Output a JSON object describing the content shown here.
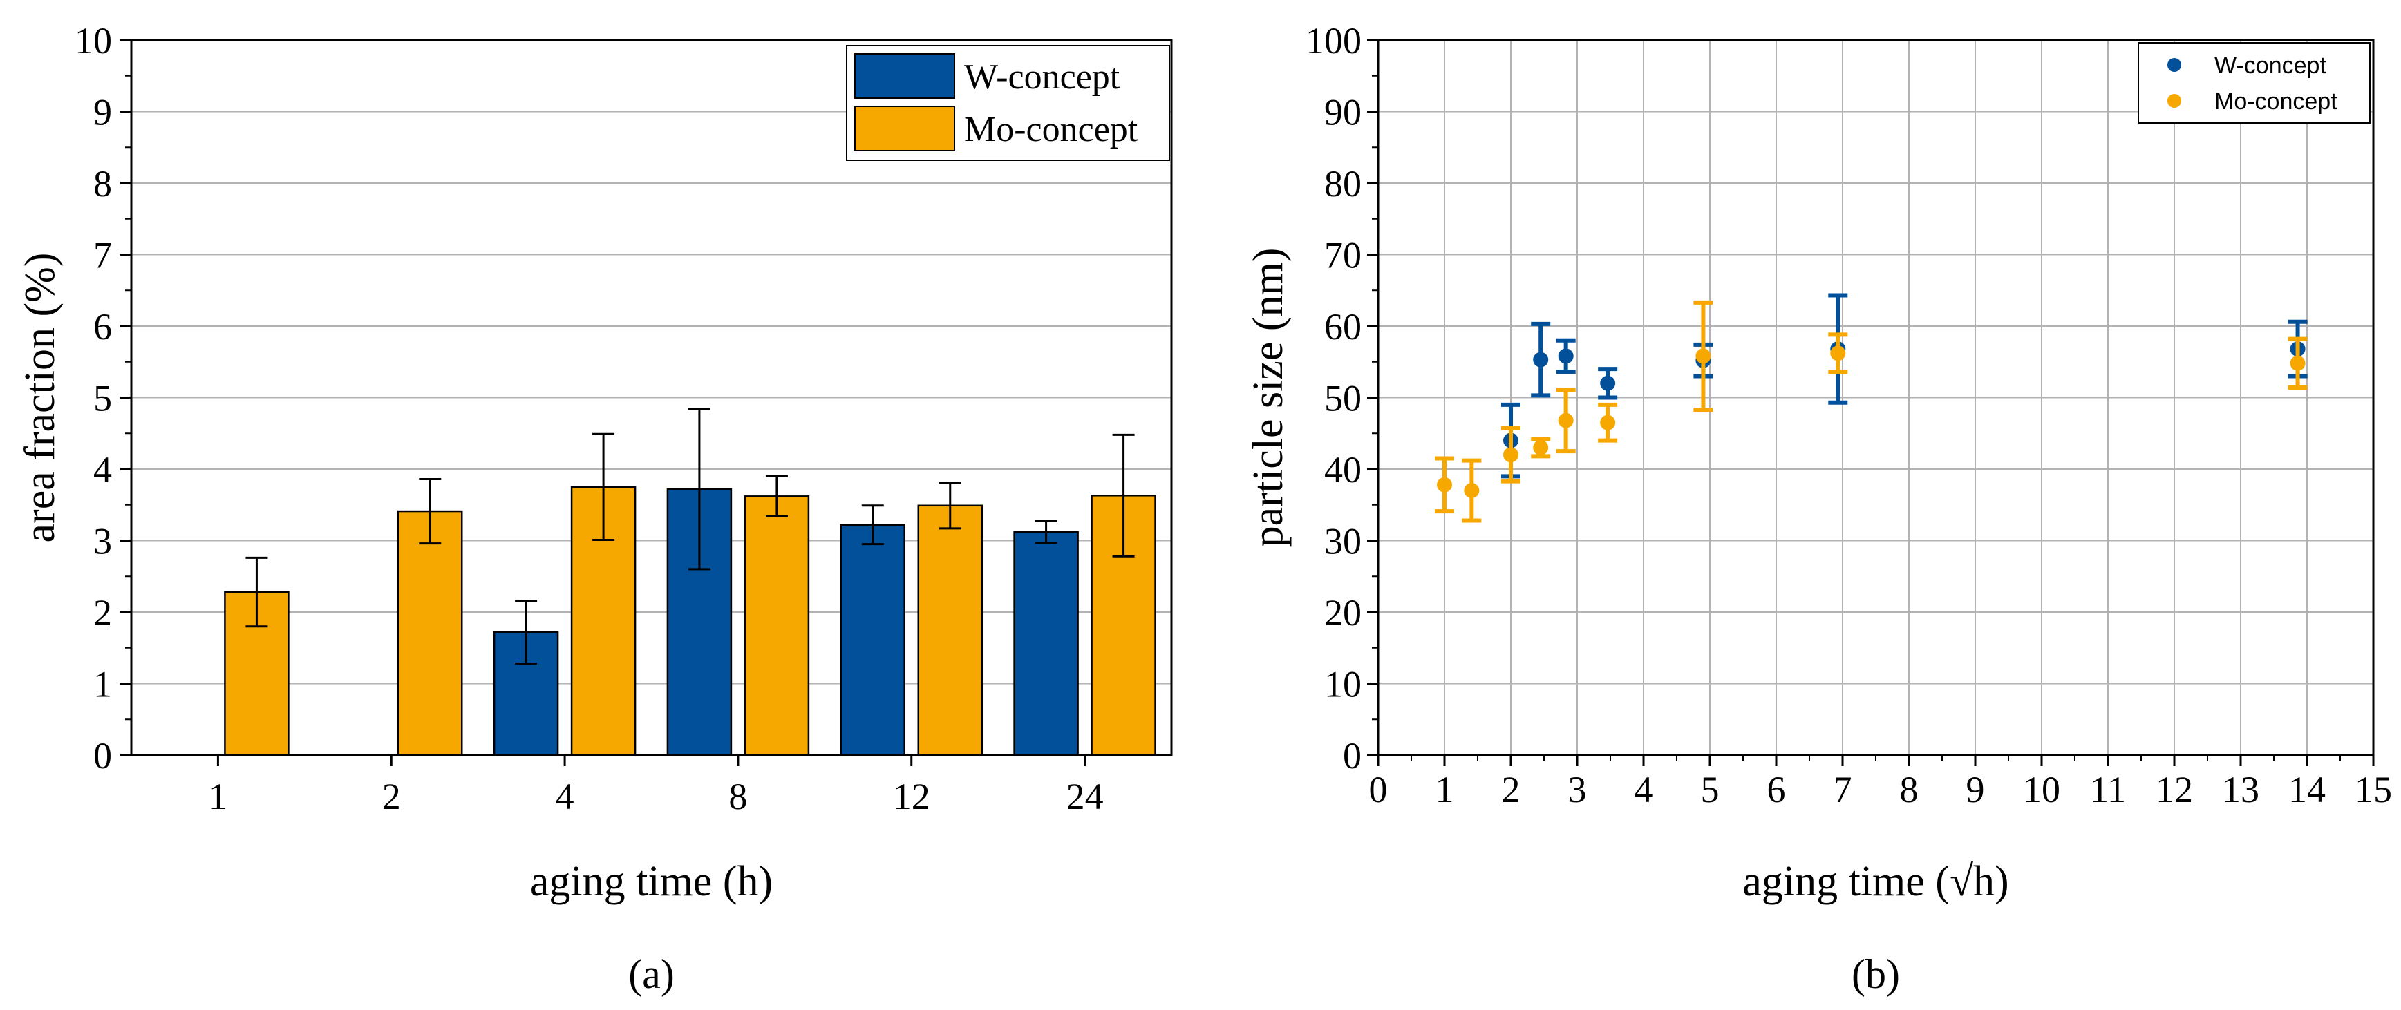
{
  "colors": {
    "w": "#03509a",
    "mo": "#f6a800",
    "axis": "#000000",
    "grid": "#b3b3b3"
  },
  "chart_data": [
    {
      "type": "bar",
      "panel_label": "(a)",
      "categories": [
        "1",
        "2",
        "4",
        "8",
        "12",
        "24"
      ],
      "xlabel": "aging time (h)",
      "ylabel": "area fraction (%)",
      "ylim": [
        0,
        10
      ],
      "yticks": [
        "0",
        "1",
        "2",
        "3",
        "4",
        "5",
        "6",
        "7",
        "8",
        "9",
        "10"
      ],
      "grid": "horizontal",
      "legend_position": "top-right",
      "series": [
        {
          "name": "W-concept",
          "color": "#03509a",
          "values": [
            null,
            null,
            1.72,
            3.72,
            3.22,
            3.12
          ],
          "errors": [
            null,
            null,
            0.44,
            1.12,
            0.27,
            0.15
          ]
        },
        {
          "name": "Mo-concept",
          "color": "#f6a800",
          "values": [
            2.28,
            3.41,
            3.75,
            3.62,
            3.49,
            3.63
          ],
          "errors": [
            0.48,
            0.45,
            0.74,
            0.28,
            0.32,
            0.85
          ]
        }
      ]
    },
    {
      "type": "scatter",
      "panel_label": "(b)",
      "xlabel": "aging time (√h)",
      "ylabel": "particle size (nm)",
      "xlim": [
        0,
        15
      ],
      "ylim": [
        0,
        100
      ],
      "xticks": [
        "0",
        "1",
        "2",
        "3",
        "4",
        "5",
        "6",
        "7",
        "8",
        "9",
        "10",
        "11",
        "12",
        "13",
        "14",
        "15"
      ],
      "yticks": [
        "0",
        "10",
        "20",
        "30",
        "40",
        "50",
        "60",
        "70",
        "80",
        "90",
        "100"
      ],
      "grid": "both",
      "legend_position": "top-right",
      "series": [
        {
          "name": "W-concept",
          "color": "#03509a",
          "x": [
            2.0,
            2.45,
            2.83,
            3.46,
            4.9,
            6.93,
            13.86
          ],
          "y": [
            44.0,
            55.3,
            55.8,
            52.0,
            55.2,
            56.8,
            56.8
          ],
          "yerr": [
            5.0,
            5.0,
            2.2,
            2.0,
            2.2,
            7.5,
            3.8
          ]
        },
        {
          "name": "Mo-concept",
          "color": "#f6a800",
          "x": [
            1.0,
            1.41,
            2.0,
            2.45,
            2.83,
            3.46,
            4.9,
            6.93,
            13.86
          ],
          "y": [
            37.8,
            37.0,
            42.0,
            43.0,
            46.8,
            46.5,
            55.8,
            56.2,
            54.8
          ],
          "yerr": [
            3.7,
            4.2,
            3.7,
            1.2,
            4.3,
            2.5,
            7.5,
            2.6,
            3.4
          ]
        }
      ]
    }
  ]
}
